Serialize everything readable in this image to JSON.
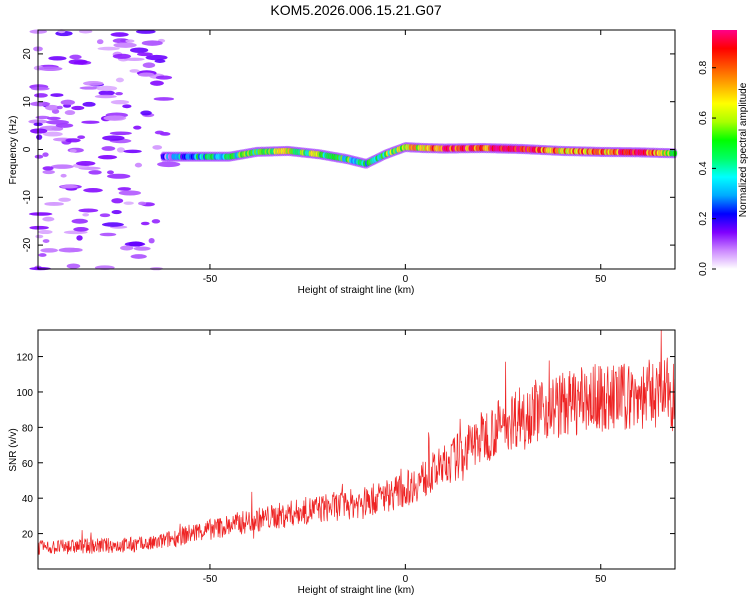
{
  "title": "KOM5.2026.006.15.21.G07",
  "chart_data": [
    {
      "type": "heatmap",
      "name": "spectrogram",
      "xlabel": "Height of straight line (km)",
      "ylabel": "Frequency (Hz)",
      "xlim": [
        -94,
        69
      ],
      "ylim": [
        -25,
        25
      ],
      "xticks": [
        -50,
        0,
        50
      ],
      "xtick_labels": [
        "-50",
        "0",
        "50"
      ],
      "yticks": [
        -20,
        -10,
        0,
        10,
        20
      ],
      "ytick_labels": [
        "-20",
        "-10",
        "0",
        "10",
        "20"
      ],
      "noise_region_x": [
        -94,
        -60
      ],
      "ridge": {
        "x": [
          -62,
          -55,
          -45,
          -38,
          -30,
          -22,
          -15,
          -10,
          -5,
          0,
          5,
          10,
          20,
          30,
          40,
          50,
          60,
          69
        ],
        "frequency": [
          -1.5,
          -1.5,
          -1.5,
          -0.5,
          -0.3,
          -1.0,
          -2.0,
          -3.0,
          -1.0,
          0.5,
          0.3,
          0.2,
          0.3,
          0.1,
          -0.3,
          -0.5,
          -0.6,
          -0.8
        ],
        "amplitude": [
          0.15,
          0.35,
          0.4,
          0.55,
          0.6,
          0.5,
          0.45,
          0.4,
          0.5,
          0.6,
          0.7,
          0.85,
          0.8,
          0.9,
          0.7,
          0.75,
          0.85,
          0.6
        ]
      },
      "colorbar": {
        "label": "Normalized spectral amplitude",
        "ticks": [
          0,
          0.2,
          0.4,
          0.6,
          0.8
        ],
        "tick_labels": [
          "0.0",
          "0.2",
          "0.4",
          "0.6",
          "0.8"
        ],
        "range": [
          0,
          0.95
        ],
        "colors": [
          "#ffffff",
          "#cc88ff",
          "#7f00ff",
          "#0000ff",
          "#00aaff",
          "#00ffff",
          "#00ff66",
          "#00ff00",
          "#aaff00",
          "#ffff00",
          "#ffaa00",
          "#ff5500",
          "#ff0000",
          "#ff0088"
        ]
      }
    },
    {
      "type": "line",
      "name": "snr",
      "xlabel": "Height of straight line (km)",
      "ylabel": "SNR (v/v)",
      "xlim": [
        -94,
        69
      ],
      "ylim": [
        0,
        135
      ],
      "xticks": [
        -50,
        0,
        50
      ],
      "xtick_labels": [
        "-50",
        "0",
        "50"
      ],
      "yticks": [
        20,
        40,
        60,
        80,
        100,
        120
      ],
      "ytick_labels": [
        "20",
        "40",
        "60",
        "80",
        "100",
        "120"
      ],
      "color": "#ee2222",
      "trend": {
        "x": [
          -94,
          -80,
          -65,
          -55,
          -40,
          -25,
          -10,
          0,
          10,
          20,
          30,
          45,
          60,
          69
        ],
        "y": [
          12,
          13,
          14,
          20,
          27,
          33,
          38,
          45,
          58,
          75,
          88,
          95,
          98,
          100
        ]
      }
    }
  ]
}
